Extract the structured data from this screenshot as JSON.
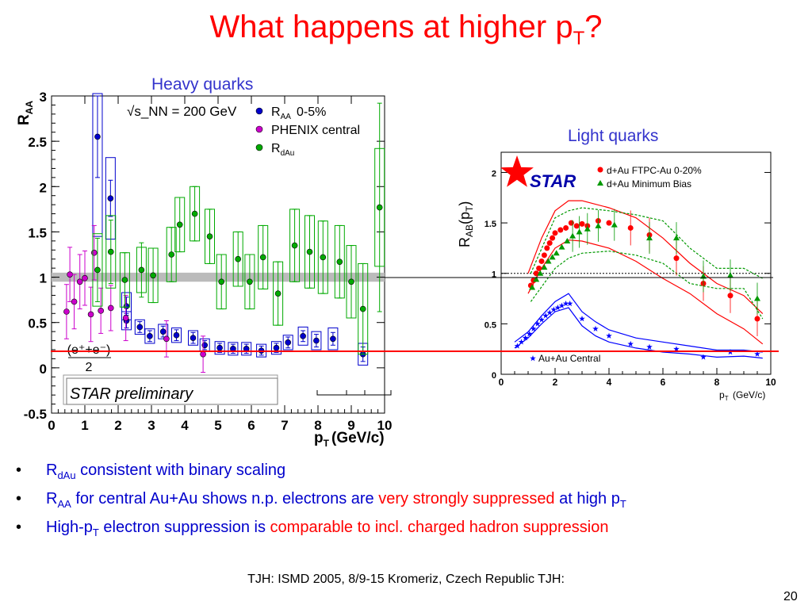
{
  "slide": {
    "title_main": "What happens at higher p",
    "title_sub": "T",
    "title_end": "?",
    "label_heavy": "Heavy quarks",
    "label_light": "Light quarks",
    "bullets": [
      {
        "parts": [
          {
            "t": "R"
          },
          {
            "t": "dAu",
            "sub": true
          },
          {
            "t": " consistent with binary scaling"
          }
        ]
      },
      {
        "parts": [
          {
            "t": "R"
          },
          {
            "t": "AA",
            "sub": true
          },
          {
            "t": " for central Au+Au shows n.p. electrons are "
          },
          {
            "t": "very strongly suppressed",
            "red": true
          },
          {
            "t": " at high p"
          },
          {
            "t": "T",
            "sub": true
          }
        ]
      },
      {
        "parts": [
          {
            "t": "High-p"
          },
          {
            "t": "T",
            "sub": true
          },
          {
            "t": " electron suppression is "
          },
          {
            "t": "comparable to incl. charged hadron suppression",
            "red": true
          }
        ]
      }
    ],
    "footer": "TJH: ISMD 2005, 8/9-15 Kromeriz, Czech Republic TJH:",
    "page_number": "20"
  },
  "chart_data": [
    {
      "type": "scatter",
      "xlabel": "p_T (GeV/c)",
      "ylabel": "R_AA",
      "xlim": [
        0,
        10
      ],
      "ylim": [
        -0.5,
        3
      ],
      "x_ticks": [
        "0",
        "1",
        "2",
        "3",
        "4",
        "5",
        "6",
        "7",
        "8",
        "9",
        "10"
      ],
      "y_ticks": [
        "-0.5",
        "0",
        "0.5",
        "1",
        "1.5",
        "2",
        "2.5",
        "3"
      ],
      "energy_label": "√s_NN = 200 GeV",
      "formula_label": "(e⁺+e⁻)",
      "formula_denominator": "2",
      "preliminary_label": "STAR preliminary",
      "band_at_1": [
        0.95,
        1.05
      ],
      "series": [
        {
          "name": "R_AA 0-5%",
          "color": "#0000cc",
          "points": [
            [
              1.38,
              2.55,
              0.45,
              1.1
            ],
            [
              1.77,
              1.87,
              0.2,
              0.45
            ],
            [
              2.25,
              0.68,
              0.1,
              0.15
            ],
            [
              2.25,
              0.52,
              0.08,
              0.1
            ],
            [
              2.65,
              0.45,
              0.06,
              0.08
            ],
            [
              2.95,
              0.35,
              0.06,
              0.08
            ],
            [
              3.35,
              0.4,
              0.06,
              0.08
            ],
            [
              3.75,
              0.36,
              0.06,
              0.08
            ],
            [
              4.25,
              0.33,
              0.06,
              0.08
            ],
            [
              4.6,
              0.25,
              0.05,
              0.07
            ],
            [
              5.05,
              0.22,
              0.05,
              0.07
            ],
            [
              5.45,
              0.21,
              0.05,
              0.07
            ],
            [
              5.85,
              0.21,
              0.05,
              0.07
            ],
            [
              6.3,
              0.19,
              0.05,
              0.07
            ],
            [
              6.75,
              0.22,
              0.05,
              0.07
            ],
            [
              7.1,
              0.28,
              0.06,
              0.08
            ],
            [
              7.55,
              0.35,
              0.06,
              0.1
            ],
            [
              7.95,
              0.3,
              0.07,
              0.1
            ],
            [
              8.45,
              0.32,
              0.07,
              0.12
            ],
            [
              9.35,
              0.15,
              0.08,
              0.12
            ]
          ]
        },
        {
          "name": "PHENIX central",
          "color": "#cc00cc",
          "points": [
            [
              0.45,
              0.62,
              0.3,
              0
            ],
            [
              0.55,
              1.03,
              0.3,
              0
            ],
            [
              0.68,
              0.73,
              0.3,
              0
            ],
            [
              0.85,
              0.95,
              0.3,
              0
            ],
            [
              1.0,
              0.99,
              0.3,
              0
            ],
            [
              1.18,
              0.59,
              0.3,
              0
            ],
            [
              1.28,
              1.27,
              0.3,
              0
            ],
            [
              1.48,
              0.63,
              0.25,
              0
            ],
            [
              1.78,
              0.66,
              0.25,
              0
            ],
            [
              2.23,
              0.55,
              0.25,
              0
            ],
            [
              3.45,
              0.32,
              0.2,
              0
            ],
            [
              4.55,
              0.15,
              0.2,
              0
            ]
          ]
        },
        {
          "name": "R_dAu",
          "color": "#00aa00",
          "points": [
            [
              1.38,
              1.08,
              0.35,
              0.4
            ],
            [
              1.78,
              1.28,
              0.35,
              0.4
            ],
            [
              2.2,
              0.97,
              0.3,
              0.3
            ],
            [
              2.7,
              1.08,
              0.3,
              0.25
            ],
            [
              3.05,
              1.02,
              0.3,
              0.3
            ],
            [
              3.6,
              1.25,
              0.3,
              0.3
            ],
            [
              3.85,
              1.58,
              0.3,
              0.3
            ],
            [
              4.3,
              1.7,
              0.3,
              0.3
            ],
            [
              4.75,
              1.45,
              0.3,
              0.3
            ],
            [
              5.1,
              0.95,
              0.3,
              0.3
            ],
            [
              5.6,
              1.2,
              0.3,
              0.3
            ],
            [
              5.95,
              0.95,
              0.3,
              0.3
            ],
            [
              6.35,
              1.22,
              0.35,
              0.35
            ],
            [
              6.8,
              0.82,
              0.35,
              0.35
            ],
            [
              7.3,
              1.35,
              0.4,
              0.4
            ],
            [
              7.75,
              1.28,
              0.4,
              0.4
            ],
            [
              8.15,
              1.22,
              0.4,
              0.4
            ],
            [
              8.65,
              1.17,
              0.4,
              0.4
            ],
            [
              9.0,
              0.95,
              0.4,
              0.4
            ],
            [
              9.35,
              0.65,
              0.5,
              0.5
            ],
            [
              9.85,
              1.77,
              1.15,
              0.65
            ]
          ]
        }
      ]
    },
    {
      "type": "line",
      "xlabel": "p_T (GeV/c)",
      "ylabel": "R_AB(p_T)",
      "xlim": [
        0,
        10
      ],
      "ylim": [
        0,
        2.2
      ],
      "x_ticks": [
        "0",
        "2",
        "4",
        "6",
        "8",
        "10"
      ],
      "y_ticks": [
        "0",
        "0.5",
        "1",
        "1.5",
        "2"
      ],
      "logo_text": "STAR",
      "series": [
        {
          "name": "d+Au FTPC-Au 0-20%",
          "color": "#ff0000",
          "marker": "circle",
          "points": [
            [
              1.1,
              0.88
            ],
            [
              1.2,
              0.93
            ],
            [
              1.3,
              1.0
            ],
            [
              1.4,
              1.05
            ],
            [
              1.5,
              1.12
            ],
            [
              1.6,
              1.18
            ],
            [
              1.7,
              1.25
            ],
            [
              1.8,
              1.3
            ],
            [
              1.9,
              1.35
            ],
            [
              2.0,
              1.4
            ],
            [
              2.2,
              1.43
            ],
            [
              2.4,
              1.45
            ],
            [
              2.6,
              1.5
            ],
            [
              2.8,
              1.47
            ],
            [
              3.0,
              1.49
            ],
            [
              3.2,
              1.47
            ],
            [
              3.6,
              1.52
            ],
            [
              4.0,
              1.5
            ],
            [
              4.8,
              1.45
            ],
            [
              5.5,
              1.38
            ],
            [
              6.5,
              1.15
            ],
            [
              7.5,
              0.9
            ],
            [
              8.5,
              0.78
            ],
            [
              9.5,
              0.55
            ]
          ]
        },
        {
          "name": "d+Au Minimum Bias",
          "color": "#009900",
          "marker": "triangle",
          "points": [
            [
              1.15,
              0.86
            ],
            [
              1.3,
              0.94
            ],
            [
              1.45,
              1.0
            ],
            [
              1.6,
              1.06
            ],
            [
              1.75,
              1.12
            ],
            [
              1.9,
              1.16
            ],
            [
              2.05,
              1.2
            ],
            [
              2.25,
              1.26
            ],
            [
              2.45,
              1.32
            ],
            [
              2.65,
              1.37
            ],
            [
              2.9,
              1.41
            ],
            [
              3.2,
              1.44
            ],
            [
              3.6,
              1.47
            ],
            [
              4.2,
              1.48
            ],
            [
              5.5,
              1.35
            ],
            [
              6.5,
              1.35
            ],
            [
              7.5,
              0.97
            ],
            [
              8.5,
              0.98
            ],
            [
              9.5,
              0.75
            ]
          ]
        },
        {
          "name": "Au+Au Central",
          "color": "#0000ff",
          "marker": "star",
          "points": [
            [
              0.6,
              0.28
            ],
            [
              0.75,
              0.32
            ],
            [
              0.9,
              0.36
            ],
            [
              1.05,
              0.4
            ],
            [
              1.2,
              0.45
            ],
            [
              1.35,
              0.5
            ],
            [
              1.5,
              0.54
            ],
            [
              1.65,
              0.58
            ],
            [
              1.8,
              0.61
            ],
            [
              1.95,
              0.64
            ],
            [
              2.1,
              0.66
            ],
            [
              2.25,
              0.68
            ],
            [
              2.4,
              0.7
            ],
            [
              2.55,
              0.7
            ],
            [
              3.0,
              0.55
            ],
            [
              3.5,
              0.45
            ],
            [
              4.0,
              0.38
            ],
            [
              4.8,
              0.3
            ],
            [
              5.5,
              0.27
            ],
            [
              6.5,
              0.25
            ],
            [
              7.5,
              0.17
            ],
            [
              8.5,
              0.22
            ],
            [
              9.5,
              0.2
            ]
          ]
        }
      ],
      "dAu_band_upper": [
        [
          1.0,
          1.0
        ],
        [
          1.5,
          1.35
        ],
        [
          2.0,
          1.62
        ],
        [
          2.5,
          1.72
        ],
        [
          3.0,
          1.72
        ],
        [
          4.0,
          1.65
        ],
        [
          5.0,
          1.55
        ],
        [
          6.0,
          1.35
        ],
        [
          7.0,
          1.1
        ],
        [
          8.0,
          0.9
        ],
        [
          9.0,
          0.78
        ],
        [
          9.7,
          0.6
        ]
      ],
      "dAu_band_lower": [
        [
          1.0,
          0.8
        ],
        [
          1.5,
          1.05
        ],
        [
          2.0,
          1.25
        ],
        [
          2.5,
          1.33
        ],
        [
          3.0,
          1.32
        ],
        [
          4.0,
          1.25
        ],
        [
          5.0,
          1.12
        ],
        [
          6.0,
          0.95
        ],
        [
          7.0,
          0.8
        ],
        [
          8.0,
          0.6
        ],
        [
          9.0,
          0.45
        ],
        [
          9.7,
          0.3
        ]
      ],
      "mb_band_upper": [
        [
          1.1,
          1.0
        ],
        [
          2.0,
          1.55
        ],
        [
          2.5,
          1.62
        ],
        [
          3.0,
          1.65
        ],
        [
          4.0,
          1.62
        ],
        [
          5.0,
          1.58
        ],
        [
          6.0,
          1.52
        ],
        [
          7.0,
          1.25
        ],
        [
          8.0,
          1.05
        ],
        [
          9.0,
          1.05
        ],
        [
          9.7,
          0.95
        ]
      ],
      "mb_band_lower": [
        [
          1.1,
          0.72
        ],
        [
          2.0,
          1.05
        ],
        [
          2.5,
          1.15
        ],
        [
          3.0,
          1.2
        ],
        [
          4.0,
          1.22
        ],
        [
          5.0,
          1.18
        ],
        [
          6.0,
          1.1
        ],
        [
          7.0,
          0.9
        ],
        [
          8.0,
          0.85
        ],
        [
          9.0,
          0.85
        ],
        [
          9.7,
          0.55
        ]
      ],
      "auau_band_upper": [
        [
          0.5,
          0.32
        ],
        [
          1.0,
          0.42
        ],
        [
          1.5,
          0.58
        ],
        [
          2.0,
          0.72
        ],
        [
          2.5,
          0.8
        ],
        [
          3.0,
          0.62
        ],
        [
          3.5,
          0.52
        ],
        [
          4.0,
          0.44
        ],
        [
          5.0,
          0.36
        ],
        [
          6.0,
          0.32
        ],
        [
          7.0,
          0.28
        ],
        [
          8.0,
          0.24
        ],
        [
          9.0,
          0.24
        ],
        [
          9.7,
          0.22
        ]
      ],
      "auau_band_lower": [
        [
          0.5,
          0.26
        ],
        [
          1.0,
          0.36
        ],
        [
          1.5,
          0.5
        ],
        [
          2.0,
          0.62
        ],
        [
          2.5,
          0.66
        ],
        [
          3.0,
          0.48
        ],
        [
          3.5,
          0.38
        ],
        [
          4.0,
          0.32
        ],
        [
          5.0,
          0.26
        ],
        [
          6.0,
          0.22
        ],
        [
          7.0,
          0.2
        ],
        [
          8.0,
          0.17
        ],
        [
          9.0,
          0.18
        ],
        [
          9.7,
          0.16
        ]
      ]
    }
  ]
}
